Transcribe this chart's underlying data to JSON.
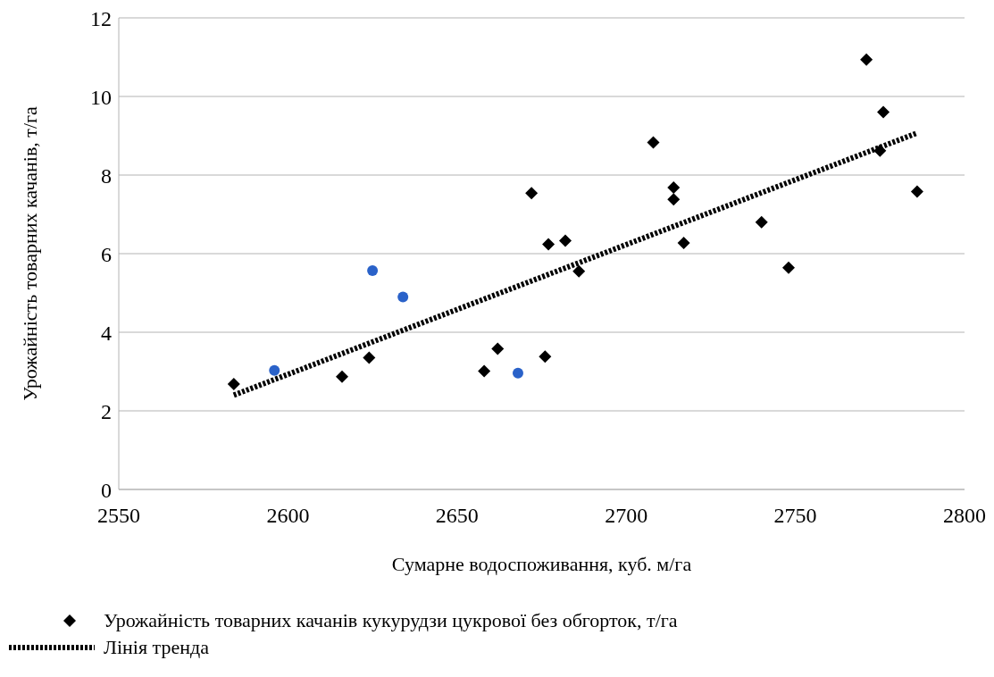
{
  "chart_data": {
    "type": "scatter",
    "xlabel": "Сумарне водоспоживання, куб. м/га",
    "ylabel": "Урожайність товарних качанів, т/га",
    "xlim": [
      2550,
      2800
    ],
    "xticks": [
      2550,
      2600,
      2650,
      2700,
      2750,
      2800
    ],
    "ylim": [
      0,
      12
    ],
    "yticks": [
      0,
      2,
      4,
      6,
      8,
      10,
      12
    ],
    "grid": "y",
    "legend": "bottom",
    "series": [
      {
        "name": "Урожайність товарних качанів кукурудзи цукрової без обгорток, т/га",
        "type": "scatter",
        "marker": "diamond",
        "color": "#000000",
        "x": [
          2584,
          2616,
          2624,
          2658,
          2662,
          2672,
          2676,
          2677,
          2682,
          2686,
          2708,
          2714,
          2714,
          2717,
          2740,
          2748,
          2771,
          2775,
          2776,
          2786
        ],
        "values": [
          2.68,
          2.87,
          3.35,
          3.01,
          3.58,
          7.54,
          3.38,
          6.24,
          6.33,
          5.55,
          8.83,
          7.68,
          7.38,
          6.27,
          6.8,
          5.64,
          10.94,
          8.62,
          9.6,
          7.58
        ]
      },
      {
        "type": "scatter",
        "marker": "circle",
        "color": "#2a62c9",
        "x": [
          2596,
          2625,
          2634,
          2668
        ],
        "values": [
          3.03,
          5.57,
          4.9,
          2.96
        ]
      },
      {
        "name": "Лінія тренда",
        "type": "line",
        "marker": "none",
        "line_style": "dotted",
        "color": "#000000",
        "x": [
          2584,
          2786
        ],
        "values": [
          2.4,
          9.07
        ]
      }
    ]
  }
}
